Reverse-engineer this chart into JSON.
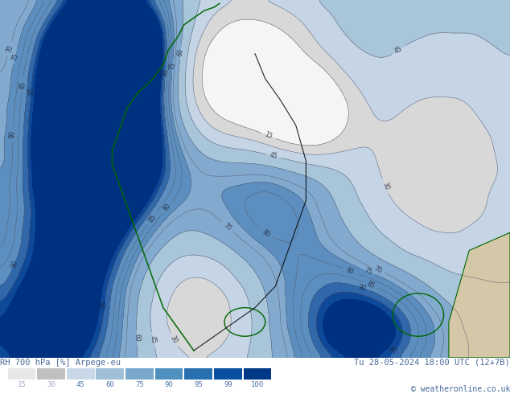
{
  "title_left": "RH 700 hPa [%] Arpege-eu",
  "title_right": "Tu 28-05-2024 18:00 UTC (12+7B)",
  "copyright": "© weatheronline.co.uk",
  "colorbar_values": [
    15,
    30,
    45,
    60,
    75,
    90,
    95,
    99,
    100
  ],
  "colorbar_colors": [
    "#e8e8e8",
    "#c0c0c0",
    "#c8d8e8",
    "#a0c0d8",
    "#78a8cc",
    "#5090bf",
    "#2870b0",
    "#0a50a0",
    "#003888"
  ],
  "bg_color": "#ffffff",
  "fig_width": 6.34,
  "fig_height": 4.9,
  "dpi": 100,
  "label_color": "#4a6a9a",
  "copyright_color": "#4a6a9a",
  "contour_line_color": "#555566",
  "contour_label_color": "#222233",
  "coast_color": "#006600",
  "border_color": "#000000",
  "land_fill_color": "#d4c8a8",
  "levels": [
    0,
    15,
    30,
    45,
    60,
    75,
    90,
    95,
    99,
    100
  ],
  "fill_colors": [
    "#f5f5f5",
    "#d8d8d8",
    "#c5d5e5",
    "#a8c5da",
    "#82aacf",
    "#5c8fbf",
    "#3068aa",
    "#0e4898",
    "#003080"
  ]
}
